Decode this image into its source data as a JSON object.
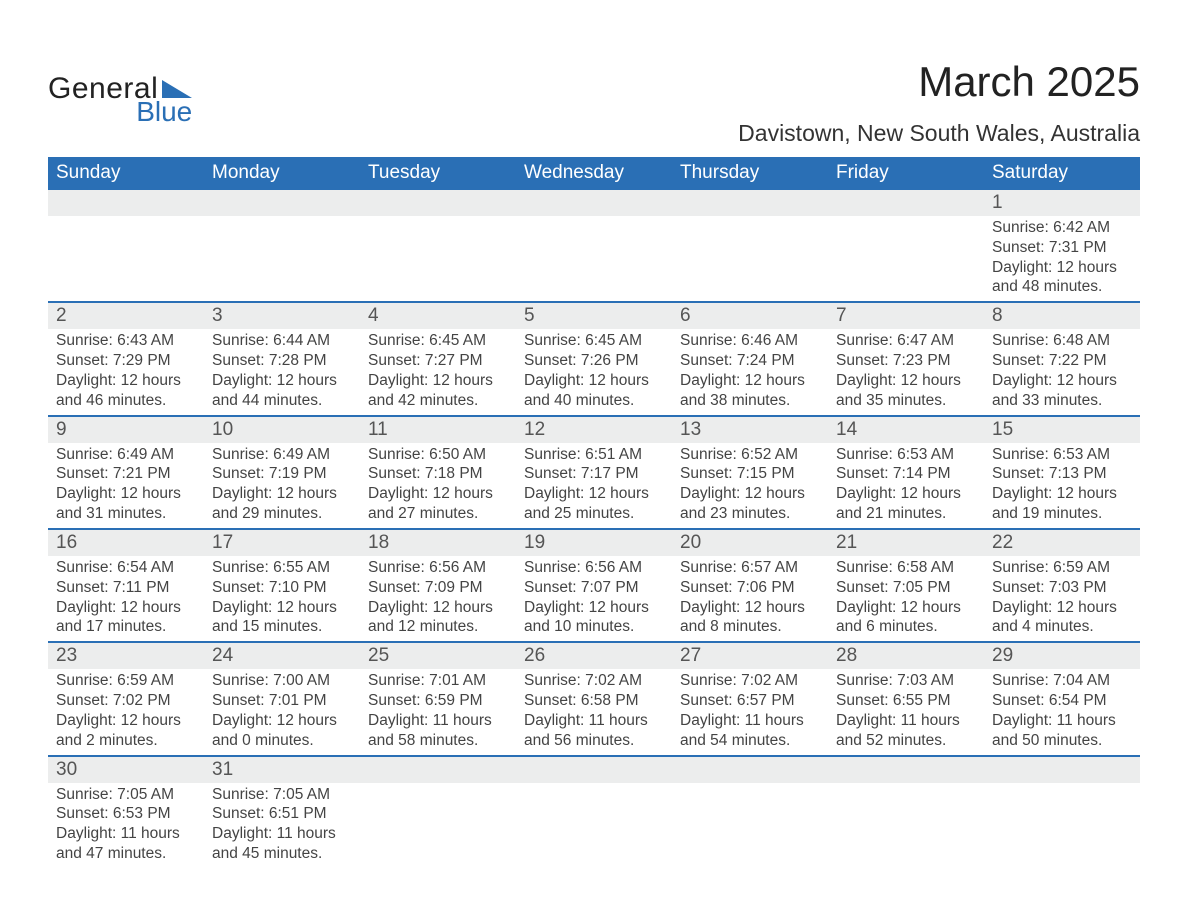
{
  "logo": {
    "text_general": "General",
    "text_blue": "Blue"
  },
  "title": {
    "month": "March 2025",
    "location": "Davistown, New South Wales, Australia"
  },
  "weekdays": [
    "Sunday",
    "Monday",
    "Tuesday",
    "Wednesday",
    "Thursday",
    "Friday",
    "Saturday"
  ],
  "colors": {
    "header_bg": "#2a6fb5",
    "header_text": "#ffffff",
    "strip_bg": "#eceded",
    "strip_border": "#2a6fb5",
    "text": "#444444",
    "title_text": "#222222"
  },
  "weeks": [
    {
      "nums": [
        "",
        "",
        "",
        "",
        "",
        "",
        "1"
      ],
      "cells": [
        null,
        null,
        null,
        null,
        null,
        null,
        {
          "sunrise": "Sunrise: 6:42 AM",
          "sunset": "Sunset: 7:31 PM",
          "day1": "Daylight: 12 hours",
          "day2": "and 48 minutes."
        }
      ]
    },
    {
      "nums": [
        "2",
        "3",
        "4",
        "5",
        "6",
        "7",
        "8"
      ],
      "cells": [
        {
          "sunrise": "Sunrise: 6:43 AM",
          "sunset": "Sunset: 7:29 PM",
          "day1": "Daylight: 12 hours",
          "day2": "and 46 minutes."
        },
        {
          "sunrise": "Sunrise: 6:44 AM",
          "sunset": "Sunset: 7:28 PM",
          "day1": "Daylight: 12 hours",
          "day2": "and 44 minutes."
        },
        {
          "sunrise": "Sunrise: 6:45 AM",
          "sunset": "Sunset: 7:27 PM",
          "day1": "Daylight: 12 hours",
          "day2": "and 42 minutes."
        },
        {
          "sunrise": "Sunrise: 6:45 AM",
          "sunset": "Sunset: 7:26 PM",
          "day1": "Daylight: 12 hours",
          "day2": "and 40 minutes."
        },
        {
          "sunrise": "Sunrise: 6:46 AM",
          "sunset": "Sunset: 7:24 PM",
          "day1": "Daylight: 12 hours",
          "day2": "and 38 minutes."
        },
        {
          "sunrise": "Sunrise: 6:47 AM",
          "sunset": "Sunset: 7:23 PM",
          "day1": "Daylight: 12 hours",
          "day2": "and 35 minutes."
        },
        {
          "sunrise": "Sunrise: 6:48 AM",
          "sunset": "Sunset: 7:22 PM",
          "day1": "Daylight: 12 hours",
          "day2": "and 33 minutes."
        }
      ]
    },
    {
      "nums": [
        "9",
        "10",
        "11",
        "12",
        "13",
        "14",
        "15"
      ],
      "cells": [
        {
          "sunrise": "Sunrise: 6:49 AM",
          "sunset": "Sunset: 7:21 PM",
          "day1": "Daylight: 12 hours",
          "day2": "and 31 minutes."
        },
        {
          "sunrise": "Sunrise: 6:49 AM",
          "sunset": "Sunset: 7:19 PM",
          "day1": "Daylight: 12 hours",
          "day2": "and 29 minutes."
        },
        {
          "sunrise": "Sunrise: 6:50 AM",
          "sunset": "Sunset: 7:18 PM",
          "day1": "Daylight: 12 hours",
          "day2": "and 27 minutes."
        },
        {
          "sunrise": "Sunrise: 6:51 AM",
          "sunset": "Sunset: 7:17 PM",
          "day1": "Daylight: 12 hours",
          "day2": "and 25 minutes."
        },
        {
          "sunrise": "Sunrise: 6:52 AM",
          "sunset": "Sunset: 7:15 PM",
          "day1": "Daylight: 12 hours",
          "day2": "and 23 minutes."
        },
        {
          "sunrise": "Sunrise: 6:53 AM",
          "sunset": "Sunset: 7:14 PM",
          "day1": "Daylight: 12 hours",
          "day2": "and 21 minutes."
        },
        {
          "sunrise": "Sunrise: 6:53 AM",
          "sunset": "Sunset: 7:13 PM",
          "day1": "Daylight: 12 hours",
          "day2": "and 19 minutes."
        }
      ]
    },
    {
      "nums": [
        "16",
        "17",
        "18",
        "19",
        "20",
        "21",
        "22"
      ],
      "cells": [
        {
          "sunrise": "Sunrise: 6:54 AM",
          "sunset": "Sunset: 7:11 PM",
          "day1": "Daylight: 12 hours",
          "day2": "and 17 minutes."
        },
        {
          "sunrise": "Sunrise: 6:55 AM",
          "sunset": "Sunset: 7:10 PM",
          "day1": "Daylight: 12 hours",
          "day2": "and 15 minutes."
        },
        {
          "sunrise": "Sunrise: 6:56 AM",
          "sunset": "Sunset: 7:09 PM",
          "day1": "Daylight: 12 hours",
          "day2": "and 12 minutes."
        },
        {
          "sunrise": "Sunrise: 6:56 AM",
          "sunset": "Sunset: 7:07 PM",
          "day1": "Daylight: 12 hours",
          "day2": "and 10 minutes."
        },
        {
          "sunrise": "Sunrise: 6:57 AM",
          "sunset": "Sunset: 7:06 PM",
          "day1": "Daylight: 12 hours",
          "day2": "and 8 minutes."
        },
        {
          "sunrise": "Sunrise: 6:58 AM",
          "sunset": "Sunset: 7:05 PM",
          "day1": "Daylight: 12 hours",
          "day2": "and 6 minutes."
        },
        {
          "sunrise": "Sunrise: 6:59 AM",
          "sunset": "Sunset: 7:03 PM",
          "day1": "Daylight: 12 hours",
          "day2": "and 4 minutes."
        }
      ]
    },
    {
      "nums": [
        "23",
        "24",
        "25",
        "26",
        "27",
        "28",
        "29"
      ],
      "cells": [
        {
          "sunrise": "Sunrise: 6:59 AM",
          "sunset": "Sunset: 7:02 PM",
          "day1": "Daylight: 12 hours",
          "day2": "and 2 minutes."
        },
        {
          "sunrise": "Sunrise: 7:00 AM",
          "sunset": "Sunset: 7:01 PM",
          "day1": "Daylight: 12 hours",
          "day2": "and 0 minutes."
        },
        {
          "sunrise": "Sunrise: 7:01 AM",
          "sunset": "Sunset: 6:59 PM",
          "day1": "Daylight: 11 hours",
          "day2": "and 58 minutes."
        },
        {
          "sunrise": "Sunrise: 7:02 AM",
          "sunset": "Sunset: 6:58 PM",
          "day1": "Daylight: 11 hours",
          "day2": "and 56 minutes."
        },
        {
          "sunrise": "Sunrise: 7:02 AM",
          "sunset": "Sunset: 6:57 PM",
          "day1": "Daylight: 11 hours",
          "day2": "and 54 minutes."
        },
        {
          "sunrise": "Sunrise: 7:03 AM",
          "sunset": "Sunset: 6:55 PM",
          "day1": "Daylight: 11 hours",
          "day2": "and 52 minutes."
        },
        {
          "sunrise": "Sunrise: 7:04 AM",
          "sunset": "Sunset: 6:54 PM",
          "day1": "Daylight: 11 hours",
          "day2": "and 50 minutes."
        }
      ]
    },
    {
      "nums": [
        "30",
        "31",
        "",
        "",
        "",
        "",
        ""
      ],
      "cells": [
        {
          "sunrise": "Sunrise: 7:05 AM",
          "sunset": "Sunset: 6:53 PM",
          "day1": "Daylight: 11 hours",
          "day2": "and 47 minutes."
        },
        {
          "sunrise": "Sunrise: 7:05 AM",
          "sunset": "Sunset: 6:51 PM",
          "day1": "Daylight: 11 hours",
          "day2": "and 45 minutes."
        },
        null,
        null,
        null,
        null,
        null
      ]
    }
  ]
}
